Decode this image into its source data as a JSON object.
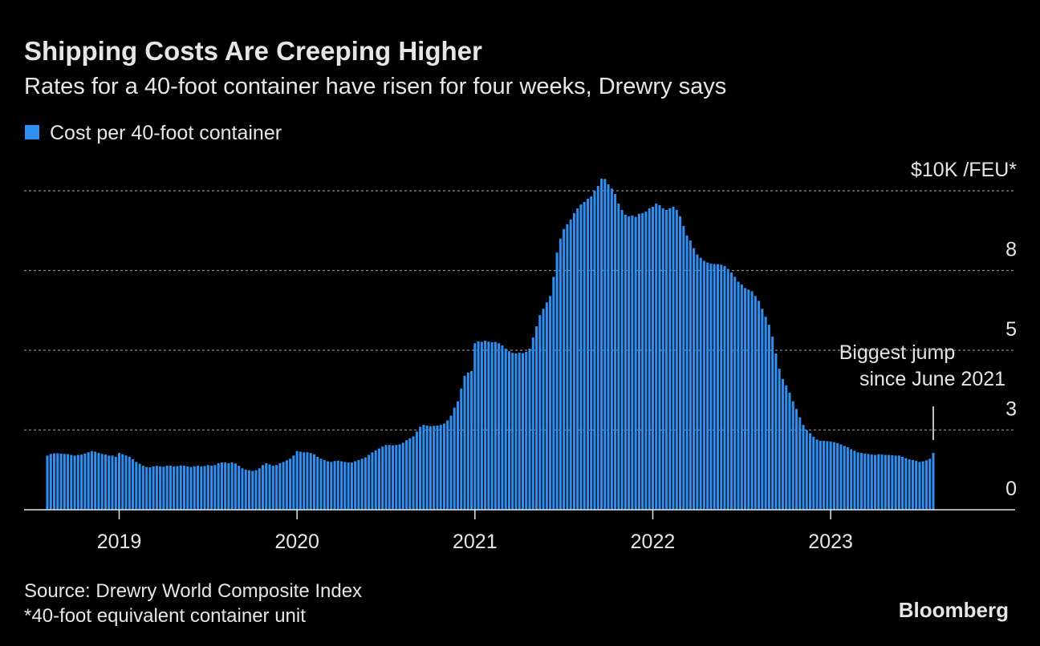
{
  "chart_data": {
    "type": "bar",
    "title": "Shipping Costs Are Creeping Higher",
    "subtitle": "Rates for a 40-foot container have risen for four weeks, Drewry says",
    "series": [
      {
        "name": "Cost per 40-foot container",
        "color": "#2e8ff0",
        "values": [
          1.7,
          1.75,
          1.77,
          1.77,
          1.76,
          1.75,
          1.74,
          1.72,
          1.7,
          1.72,
          1.73,
          1.76,
          1.8,
          1.84,
          1.82,
          1.78,
          1.75,
          1.73,
          1.7,
          1.7,
          1.66,
          1.78,
          1.74,
          1.7,
          1.66,
          1.58,
          1.5,
          1.44,
          1.38,
          1.34,
          1.33,
          1.36,
          1.38,
          1.36,
          1.35,
          1.38,
          1.38,
          1.36,
          1.37,
          1.39,
          1.38,
          1.36,
          1.34,
          1.36,
          1.38,
          1.36,
          1.37,
          1.4,
          1.38,
          1.4,
          1.46,
          1.48,
          1.48,
          1.46,
          1.48,
          1.45,
          1.38,
          1.3,
          1.26,
          1.24,
          1.22,
          1.24,
          1.3,
          1.4,
          1.46,
          1.42,
          1.38,
          1.4,
          1.46,
          1.5,
          1.55,
          1.6,
          1.7,
          1.84,
          1.82,
          1.8,
          1.8,
          1.78,
          1.74,
          1.66,
          1.6,
          1.56,
          1.52,
          1.5,
          1.53,
          1.54,
          1.52,
          1.5,
          1.48,
          1.48,
          1.52,
          1.56,
          1.6,
          1.64,
          1.72,
          1.8,
          1.86,
          1.92,
          1.98,
          2.03,
          2.03,
          2.02,
          2.03,
          2.05,
          2.1,
          2.18,
          2.24,
          2.3,
          2.45,
          2.6,
          2.66,
          2.64,
          2.62,
          2.63,
          2.64,
          2.66,
          2.7,
          2.8,
          2.95,
          3.2,
          3.4,
          3.8,
          4.2,
          4.3,
          4.35,
          5.22,
          5.28,
          5.26,
          5.3,
          5.27,
          5.25,
          5.26,
          5.22,
          5.15,
          5.05,
          4.97,
          4.92,
          4.9,
          4.92,
          4.91,
          4.95,
          5.05,
          5.4,
          5.75,
          6.1,
          6.3,
          6.5,
          6.7,
          7.3,
          8.06,
          8.5,
          8.8,
          8.95,
          9.1,
          9.3,
          9.45,
          9.57,
          9.65,
          9.75,
          9.82,
          10.0,
          10.15,
          10.38,
          10.37,
          10.2,
          10.07,
          9.9,
          9.6,
          9.4,
          9.25,
          9.2,
          9.22,
          9.18,
          9.28,
          9.3,
          9.35,
          9.45,
          9.5,
          9.6,
          9.55,
          9.45,
          9.4,
          9.45,
          9.5,
          9.4,
          9.2,
          8.9,
          8.6,
          8.44,
          8.2,
          8.0,
          7.9,
          7.8,
          7.75,
          7.72,
          7.7,
          7.7,
          7.68,
          7.64,
          7.55,
          7.44,
          7.3,
          7.15,
          7.06,
          6.95,
          6.9,
          6.85,
          6.7,
          6.55,
          6.3,
          6.05,
          5.8,
          5.43,
          4.9,
          4.42,
          4.1,
          3.9,
          3.67,
          3.4,
          3.16,
          2.9,
          2.66,
          2.5,
          2.4,
          2.29,
          2.2,
          2.16,
          2.16,
          2.15,
          2.14,
          2.12,
          2.09,
          2.05,
          2.0,
          1.96,
          1.9,
          1.85,
          1.8,
          1.78,
          1.76,
          1.75,
          1.73,
          1.72,
          1.74,
          1.73,
          1.72,
          1.72,
          1.71,
          1.7,
          1.7,
          1.66,
          1.62,
          1.58,
          1.56,
          1.53,
          1.5,
          1.52,
          1.55,
          1.6,
          1.78
        ]
      }
    ],
    "categories": [
      null,
      null,
      null,
      null,
      null,
      null,
      null,
      null,
      null,
      null,
      null,
      null,
      null,
      null,
      null,
      null,
      null,
      null,
      null,
      null,
      null,
      "2019",
      null,
      null,
      null,
      null,
      null,
      null,
      null,
      null,
      null,
      null,
      null,
      null,
      null,
      null,
      null,
      null,
      null,
      null,
      null,
      null,
      null,
      null,
      null,
      null,
      null,
      null,
      null,
      null,
      null,
      null,
      null,
      null,
      null,
      null,
      null,
      null,
      null,
      null,
      null,
      null,
      null,
      null,
      null,
      null,
      null,
      null,
      null,
      null,
      null,
      null,
      null,
      "2020",
      null,
      null,
      null,
      null,
      null,
      null,
      null,
      null,
      null,
      null,
      null,
      null,
      null,
      null,
      null,
      null,
      null,
      null,
      null,
      null,
      null,
      null,
      null,
      null,
      null,
      null,
      null,
      null,
      null,
      null,
      null,
      null,
      null,
      null,
      null,
      null,
      null,
      null,
      null,
      null,
      null,
      null,
      null,
      null,
      null,
      null,
      null,
      null,
      null,
      null,
      null,
      "2021",
      null,
      null,
      null,
      null,
      null,
      null,
      null,
      null,
      null,
      null,
      null,
      null,
      null,
      null,
      null,
      null,
      null,
      null,
      null,
      null,
      null,
      null,
      null,
      null,
      null,
      null,
      null,
      null,
      null,
      null,
      null,
      null,
      null,
      null,
      null,
      null,
      null,
      null,
      null,
      null,
      null,
      null,
      null,
      null,
      null,
      null,
      null,
      null,
      null,
      null,
      null,
      "2022",
      null,
      null,
      null,
      null,
      null,
      null,
      null,
      null,
      null,
      null,
      null,
      null,
      null,
      null,
      null,
      null,
      null,
      null,
      null,
      null,
      null,
      null,
      null,
      null,
      null,
      null,
      null,
      null,
      null,
      null,
      null,
      null,
      null,
      null,
      null,
      null,
      null,
      null,
      null,
      null,
      null,
      null,
      null,
      null,
      null,
      null,
      null,
      null,
      null,
      null,
      null,
      "2023",
      null,
      null,
      null,
      null,
      null,
      null,
      null,
      null,
      null,
      null,
      null,
      null,
      null,
      null,
      null,
      null,
      null,
      null,
      null,
      null,
      null,
      null,
      null,
      null,
      null,
      null,
      null,
      null,
      null,
      null
    ],
    "ylim": [
      0,
      10
    ],
    "yticks": [
      0,
      {
        "value": 2.5,
        "label": "3"
      },
      5,
      {
        "value": 7.5,
        "label": "8"
      },
      {
        "value": 10,
        "label": "$10K /FEU*"
      }
    ],
    "grid": true,
    "annotation": [
      "Biggest jump",
      "since June 2021"
    ],
    "source": "Source: Drewry World Composite Index",
    "footnote": "*40-foot equivalent container unit",
    "brand": "Bloomberg"
  }
}
